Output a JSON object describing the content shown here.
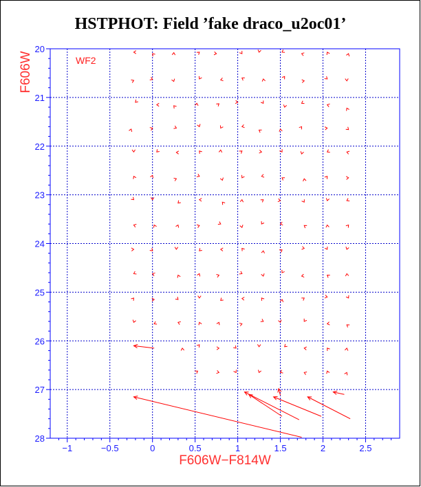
{
  "title": "HSTPHOT: Field ’fake draco_u2oc01’",
  "colors": {
    "axis": "#0000ff",
    "grid": "#0000cc",
    "marks": "#ff0000",
    "title": "#000000"
  },
  "chart_data": {
    "type": "scatter",
    "title": "HSTPHOT: Field ’fake draco_u2oc01’",
    "xlabel": "F606W−F814W",
    "ylabel": "F606W",
    "panel_label": "WF2",
    "xlim": [
      -1.2,
      2.9
    ],
    "ylim": [
      28,
      20
    ],
    "y_inverted": true,
    "grid": true,
    "x_ticks": [
      -1,
      -0.5,
      0,
      0.5,
      1,
      1.5,
      2,
      2.5
    ],
    "x_tick_labels": [
      "−1",
      "−0.5",
      "0",
      "0.5",
      "1",
      "1.5",
      "2",
      "2.5"
    ],
    "y_ticks": [
      20,
      21,
      22,
      23,
      24,
      25,
      26,
      27,
      28
    ],
    "y_tick_labels": [
      "20",
      "21",
      "22",
      "23",
      "24",
      "25",
      "26",
      "27",
      "28"
    ],
    "marker": "chevron",
    "arrows": [
      {
        "x0": 1.75,
        "y0": 27.98,
        "x1": -0.22,
        "y1": 27.15
      },
      {
        "x0": 1.52,
        "y0": 27.55,
        "x1": 1.13,
        "y1": 27.1
      },
      {
        "x0": 1.72,
        "y0": 27.62,
        "x1": 1.08,
        "y1": 27.05
      },
      {
        "x0": 1.98,
        "y0": 27.55,
        "x1": 1.42,
        "y1": 27.15
      },
      {
        "x0": 2.32,
        "y0": 27.6,
        "x1": 1.82,
        "y1": 27.15
      },
      {
        "x0": 0.02,
        "y0": 26.15,
        "x1": -0.22,
        "y1": 26.1
      },
      {
        "x0": 1.5,
        "y0": 27.12,
        "x1": 1.48,
        "y1": 26.98
      },
      {
        "x0": 2.25,
        "y0": 27.1,
        "x1": 2.12,
        "y1": 27.05
      }
    ],
    "points": [
      {
        "x": -0.22,
        "y": 20.07
      },
      {
        "x": 0.0,
        "y": 20.1
      },
      {
        "x": 0.25,
        "y": 20.08
      },
      {
        "x": 0.55,
        "y": 20.07
      },
      {
        "x": 0.75,
        "y": 20.1
      },
      {
        "x": 1.05,
        "y": 20.1
      },
      {
        "x": 1.25,
        "y": 20.07
      },
      {
        "x": 1.52,
        "y": 20.07
      },
      {
        "x": 1.75,
        "y": 20.1
      },
      {
        "x": 2.05,
        "y": 20.07
      },
      {
        "x": 2.3,
        "y": 20.1
      },
      {
        "x": -0.22,
        "y": 20.65
      },
      {
        "x": 0.0,
        "y": 20.63
      },
      {
        "x": 0.25,
        "y": 20.67
      },
      {
        "x": 0.55,
        "y": 20.62
      },
      {
        "x": 0.8,
        "y": 20.64
      },
      {
        "x": 1.05,
        "y": 20.6
      },
      {
        "x": 1.3,
        "y": 20.62
      },
      {
        "x": 1.55,
        "y": 20.57
      },
      {
        "x": 1.78,
        "y": 20.66
      },
      {
        "x": 2.05,
        "y": 20.62
      },
      {
        "x": 2.28,
        "y": 20.66
      },
      {
        "x": -0.2,
        "y": 21.1
      },
      {
        "x": 0.05,
        "y": 21.15
      },
      {
        "x": 0.25,
        "y": 21.17
      },
      {
        "x": 0.52,
        "y": 21.12
      },
      {
        "x": 0.78,
        "y": 21.13
      },
      {
        "x": 1.0,
        "y": 21.1
      },
      {
        "x": 1.3,
        "y": 21.12
      },
      {
        "x": 1.55,
        "y": 21.2
      },
      {
        "x": 1.75,
        "y": 21.12
      },
      {
        "x": 2.05,
        "y": 21.15
      },
      {
        "x": 2.28,
        "y": 21.22
      },
      {
        "x": -0.25,
        "y": 21.65
      },
      {
        "x": 0.0,
        "y": 21.63
      },
      {
        "x": 0.28,
        "y": 21.63
      },
      {
        "x": 0.55,
        "y": 21.6
      },
      {
        "x": 0.8,
        "y": 21.63
      },
      {
        "x": 1.05,
        "y": 21.6
      },
      {
        "x": 1.25,
        "y": 21.67
      },
      {
        "x": 1.5,
        "y": 21.65
      },
      {
        "x": 1.75,
        "y": 21.6
      },
      {
        "x": 2.05,
        "y": 21.63
      },
      {
        "x": 2.3,
        "y": 21.66
      },
      {
        "x": -0.22,
        "y": 22.12
      },
      {
        "x": 0.05,
        "y": 22.12
      },
      {
        "x": 0.28,
        "y": 22.13
      },
      {
        "x": 0.55,
        "y": 22.1
      },
      {
        "x": 0.8,
        "y": 22.08
      },
      {
        "x": 1.05,
        "y": 22.1
      },
      {
        "x": 1.28,
        "y": 22.12
      },
      {
        "x": 1.52,
        "y": 22.12
      },
      {
        "x": 1.75,
        "y": 22.16
      },
      {
        "x": 2.05,
        "y": 22.12
      },
      {
        "x": 2.28,
        "y": 22.12
      },
      {
        "x": -0.22,
        "y": 22.62
      },
      {
        "x": 0.0,
        "y": 22.6
      },
      {
        "x": 0.28,
        "y": 22.67
      },
      {
        "x": 0.55,
        "y": 22.62
      },
      {
        "x": 0.82,
        "y": 22.7
      },
      {
        "x": 1.05,
        "y": 22.65
      },
      {
        "x": 1.28,
        "y": 22.62
      },
      {
        "x": 1.52,
        "y": 22.65
      },
      {
        "x": 1.78,
        "y": 22.67
      },
      {
        "x": 2.05,
        "y": 22.62
      },
      {
        "x": 2.3,
        "y": 22.65
      },
      {
        "x": -0.22,
        "y": 23.1
      },
      {
        "x": 0.0,
        "y": 23.1
      },
      {
        "x": 0.3,
        "y": 23.17
      },
      {
        "x": 0.55,
        "y": 23.1
      },
      {
        "x": 0.82,
        "y": 23.15
      },
      {
        "x": 1.05,
        "y": 23.1
      },
      {
        "x": 1.3,
        "y": 23.1
      },
      {
        "x": 1.5,
        "y": 23.12
      },
      {
        "x": 1.78,
        "y": 23.15
      },
      {
        "x": 2.05,
        "y": 23.12
      },
      {
        "x": 2.28,
        "y": 23.12
      },
      {
        "x": -0.22,
        "y": 23.62
      },
      {
        "x": 0.02,
        "y": 23.62
      },
      {
        "x": 0.3,
        "y": 23.62
      },
      {
        "x": 0.55,
        "y": 23.63
      },
      {
        "x": 0.8,
        "y": 23.6
      },
      {
        "x": 1.05,
        "y": 23.67
      },
      {
        "x": 1.28,
        "y": 23.6
      },
      {
        "x": 1.5,
        "y": 23.6
      },
      {
        "x": 1.78,
        "y": 23.63
      },
      {
        "x": 2.05,
        "y": 23.62
      },
      {
        "x": 2.3,
        "y": 23.62
      },
      {
        "x": -0.22,
        "y": 24.12
      },
      {
        "x": 0.0,
        "y": 24.15
      },
      {
        "x": 0.28,
        "y": 24.12
      },
      {
        "x": 0.55,
        "y": 24.15
      },
      {
        "x": 0.8,
        "y": 24.12
      },
      {
        "x": 1.05,
        "y": 24.1
      },
      {
        "x": 1.3,
        "y": 24.15
      },
      {
        "x": 1.52,
        "y": 24.13
      },
      {
        "x": 1.78,
        "y": 24.1
      },
      {
        "x": 2.05,
        "y": 24.12
      },
      {
        "x": 2.28,
        "y": 24.12
      },
      {
        "x": -0.22,
        "y": 24.62
      },
      {
        "x": 0.0,
        "y": 24.62
      },
      {
        "x": 0.3,
        "y": 24.65
      },
      {
        "x": 0.55,
        "y": 24.62
      },
      {
        "x": 0.78,
        "y": 24.65
      },
      {
        "x": 1.05,
        "y": 24.62
      },
      {
        "x": 1.3,
        "y": 24.67
      },
      {
        "x": 1.52,
        "y": 24.6
      },
      {
        "x": 1.75,
        "y": 24.67
      },
      {
        "x": 2.05,
        "y": 24.65
      },
      {
        "x": 2.28,
        "y": 24.62
      },
      {
        "x": -0.22,
        "y": 25.12
      },
      {
        "x": 0.02,
        "y": 25.15
      },
      {
        "x": 0.3,
        "y": 25.15
      },
      {
        "x": 0.55,
        "y": 25.12
      },
      {
        "x": 0.8,
        "y": 25.17
      },
      {
        "x": 1.05,
        "y": 25.13
      },
      {
        "x": 1.28,
        "y": 25.12
      },
      {
        "x": 1.52,
        "y": 25.15
      },
      {
        "x": 1.78,
        "y": 25.12
      },
      {
        "x": 2.05,
        "y": 25.1
      },
      {
        "x": 2.3,
        "y": 25.12
      },
      {
        "x": -0.22,
        "y": 25.62
      },
      {
        "x": 0.02,
        "y": 25.65
      },
      {
        "x": 0.3,
        "y": 25.62
      },
      {
        "x": 0.55,
        "y": 25.62
      },
      {
        "x": 0.78,
        "y": 25.62
      },
      {
        "x": 1.05,
        "y": 25.65
      },
      {
        "x": 1.3,
        "y": 25.6
      },
      {
        "x": 1.5,
        "y": 25.62
      },
      {
        "x": 1.78,
        "y": 25.6
      },
      {
        "x": 2.05,
        "y": 25.65
      },
      {
        "x": 2.28,
        "y": 25.67
      },
      {
        "x": 0.35,
        "y": 26.15
      },
      {
        "x": 0.55,
        "y": 26.08
      },
      {
        "x": 0.78,
        "y": 26.15
      },
      {
        "x": 0.98,
        "y": 26.15
      },
      {
        "x": 1.25,
        "y": 26.12
      },
      {
        "x": 1.55,
        "y": 26.12
      },
      {
        "x": 1.78,
        "y": 26.15
      },
      {
        "x": 2.05,
        "y": 26.15
      },
      {
        "x": 2.28,
        "y": 26.15
      },
      {
        "x": 0.53,
        "y": 26.62
      },
      {
        "x": 0.78,
        "y": 26.65
      },
      {
        "x": 0.98,
        "y": 26.65
      },
      {
        "x": 1.25,
        "y": 26.65
      },
      {
        "x": 1.5,
        "y": 26.65
      },
      {
        "x": 1.78,
        "y": 26.65
      },
      {
        "x": 2.05,
        "y": 26.62
      },
      {
        "x": 2.28,
        "y": 26.65
      }
    ]
  }
}
